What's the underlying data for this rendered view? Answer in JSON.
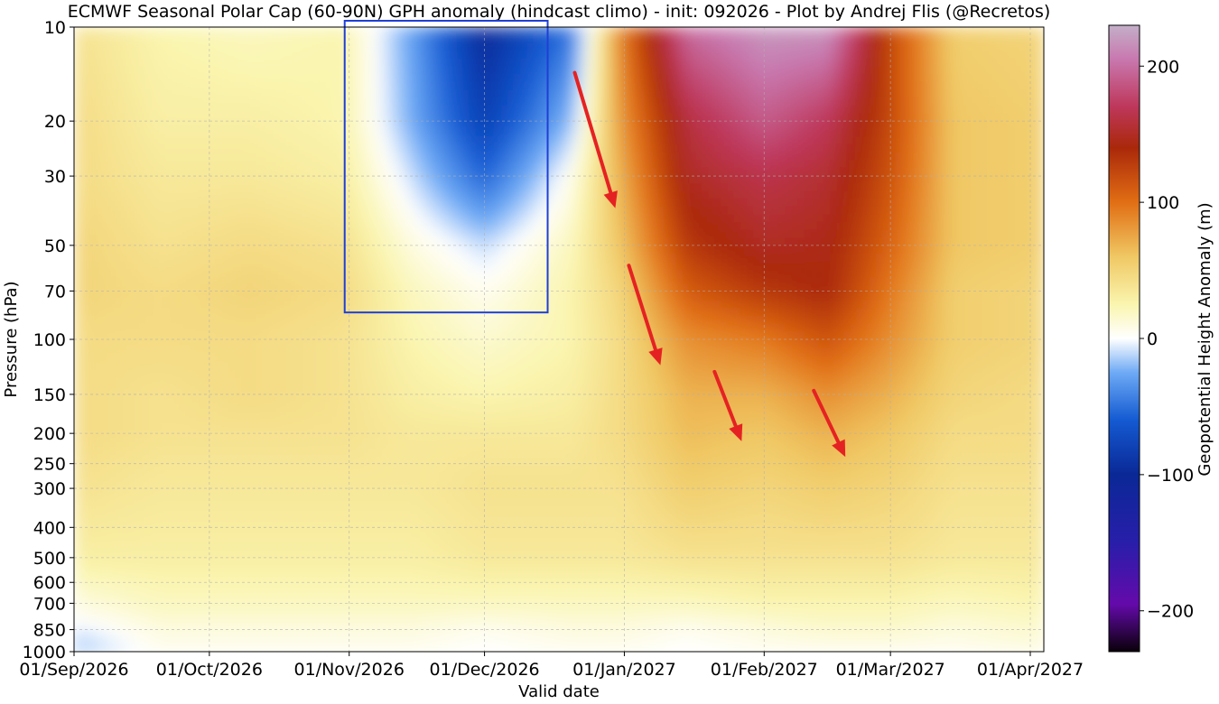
{
  "chart_data": {
    "type": "heatmap",
    "title": "ECMWF Seasonal Polar Cap (60-90N) GPH anomaly (hindcast climo) - init: 092026 - Plot by Andrej Flis (@Recretos)",
    "xlabel": "Valid date",
    "ylabel": "Pressure (hPa)",
    "xlim": [
      "2026-09-01",
      "2027-04-04"
    ],
    "x_ticks": [
      "01/Sep/2026",
      "01/Oct/2026",
      "01/Nov/2026",
      "01/Dec/2026",
      "01/Jan/2027",
      "01/Feb/2027",
      "01/Mar/2027",
      "01/Apr/2027"
    ],
    "y_scale": "log (inverted)",
    "ylim": [
      1000,
      10
    ],
    "y_ticks": [
      10,
      20,
      30,
      50,
      70,
      100,
      150,
      200,
      250,
      300,
      400,
      500,
      600,
      700,
      850,
      1000
    ],
    "grid": true,
    "colorbar": {
      "label": "Geopotential Height Anomaly (m)",
      "range": [
        -230,
        230
      ],
      "ticks": [
        200,
        100,
        0,
        -100,
        -200
      ]
    },
    "values": {
      "x": [
        "2026-09-01",
        "2026-09-20",
        "2026-10-10",
        "2026-10-31",
        "2026-11-15",
        "2026-12-01",
        "2026-12-20",
        "2026-12-31",
        "2027-01-15",
        "2027-02-01",
        "2027-02-15",
        "2027-03-01",
        "2027-03-15",
        "2027-04-04"
      ],
      "pressure_hPa": [
        10,
        20,
        30,
        50,
        70,
        100,
        150,
        200,
        300,
        500,
        700,
        850,
        1000
      ],
      "z": [
        [
          40,
          25,
          20,
          25,
          -30,
          -100,
          -50,
          90,
          200,
          220,
          220,
          120,
          55,
          50
        ],
        [
          45,
          30,
          30,
          25,
          -25,
          -80,
          -20,
          80,
          160,
          190,
          170,
          120,
          60,
          55
        ],
        [
          45,
          35,
          35,
          30,
          -10,
          -55,
          5,
          70,
          150,
          165,
          155,
          115,
          60,
          55
        ],
        [
          50,
          40,
          45,
          40,
          10,
          -10,
          20,
          60,
          130,
          150,
          145,
          105,
          60,
          55
        ],
        [
          50,
          45,
          50,
          45,
          20,
          5,
          25,
          50,
          110,
          130,
          140,
          95,
          55,
          50
        ],
        [
          45,
          45,
          45,
          40,
          25,
          15,
          25,
          45,
          85,
          95,
          115,
          85,
          55,
          50
        ],
        [
          45,
          40,
          45,
          40,
          30,
          25,
          30,
          45,
          70,
          70,
          85,
          70,
          50,
          45
        ],
        [
          45,
          40,
          40,
          40,
          35,
          35,
          35,
          45,
          65,
          60,
          70,
          60,
          45,
          45
        ],
        [
          40,
          35,
          35,
          35,
          35,
          40,
          40,
          40,
          55,
          50,
          55,
          50,
          40,
          40
        ],
        [
          30,
          30,
          30,
          30,
          30,
          35,
          35,
          35,
          40,
          40,
          40,
          40,
          35,
          35
        ],
        [
          10,
          20,
          20,
          20,
          20,
          20,
          20,
          20,
          20,
          25,
          25,
          25,
          20,
          25
        ],
        [
          -5,
          10,
          10,
          10,
          10,
          5,
          10,
          10,
          5,
          10,
          15,
          15,
          10,
          15
        ],
        [
          -20,
          5,
          5,
          5,
          5,
          0,
          5,
          5,
          0,
          5,
          5,
          5,
          5,
          10
        ]
      ]
    },
    "annotations": [
      {
        "type": "box",
        "color": "#1f3fd6",
        "x_range": [
          "2026-10-31",
          "2026-12-15"
        ],
        "p_range": [
          10,
          82
        ]
      },
      {
        "type": "arrow",
        "color": "#e52222",
        "from": {
          "date": "2026-12-21",
          "p": 14
        },
        "to": {
          "date": "2026-12-30",
          "p": 38
        }
      },
      {
        "type": "arrow",
        "color": "#e52222",
        "from": {
          "date": "2027-01-02",
          "p": 58
        },
        "to": {
          "date": "2027-01-09",
          "p": 121
        }
      },
      {
        "type": "arrow",
        "color": "#e52222",
        "from": {
          "date": "2027-01-21",
          "p": 127
        },
        "to": {
          "date": "2027-01-27",
          "p": 212
        }
      },
      {
        "type": "arrow",
        "color": "#e52222",
        "from": {
          "date": "2027-02-12",
          "p": 146
        },
        "to": {
          "date": "2027-02-19",
          "p": 238
        }
      }
    ]
  }
}
